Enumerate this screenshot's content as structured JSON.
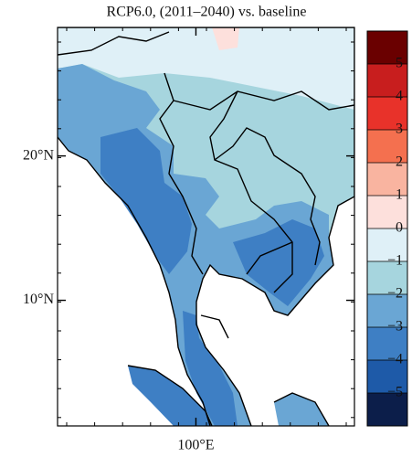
{
  "title": "RCP6.0, (2011–2040) vs. baseline",
  "map": {
    "lat_range": [
      1.3,
      28.9
    ],
    "lon_range": [
      90.4,
      111
    ],
    "lat_ticks": [
      {
        "value": 20,
        "label": "20°N"
      },
      {
        "value": 10,
        "label": "10°N"
      }
    ],
    "lon_ticks": [
      {
        "value": 100,
        "label": "100°E"
      }
    ]
  },
  "colorbar": {
    "range": [
      -6,
      6
    ],
    "ticks": [
      5,
      4,
      3,
      2,
      1,
      0,
      {
        "value": -1,
        "label": "−1"
      },
      {
        "value": -2,
        "label": "−2"
      },
      {
        "value": -3,
        "label": "−3"
      },
      {
        "value": -4,
        "label": "−4"
      },
      {
        "value": -5,
        "label": "−5"
      }
    ],
    "colors": [
      "#0c1e4a",
      "#1e5aa8",
      "#3e7fc4",
      "#6aa6d4",
      "#a6d5de",
      "#dff0f7",
      "#fde0dc",
      "#f9b4a0",
      "#f4704f",
      "#e8322a",
      "#c81e1e",
      "#6a0000"
    ]
  }
}
